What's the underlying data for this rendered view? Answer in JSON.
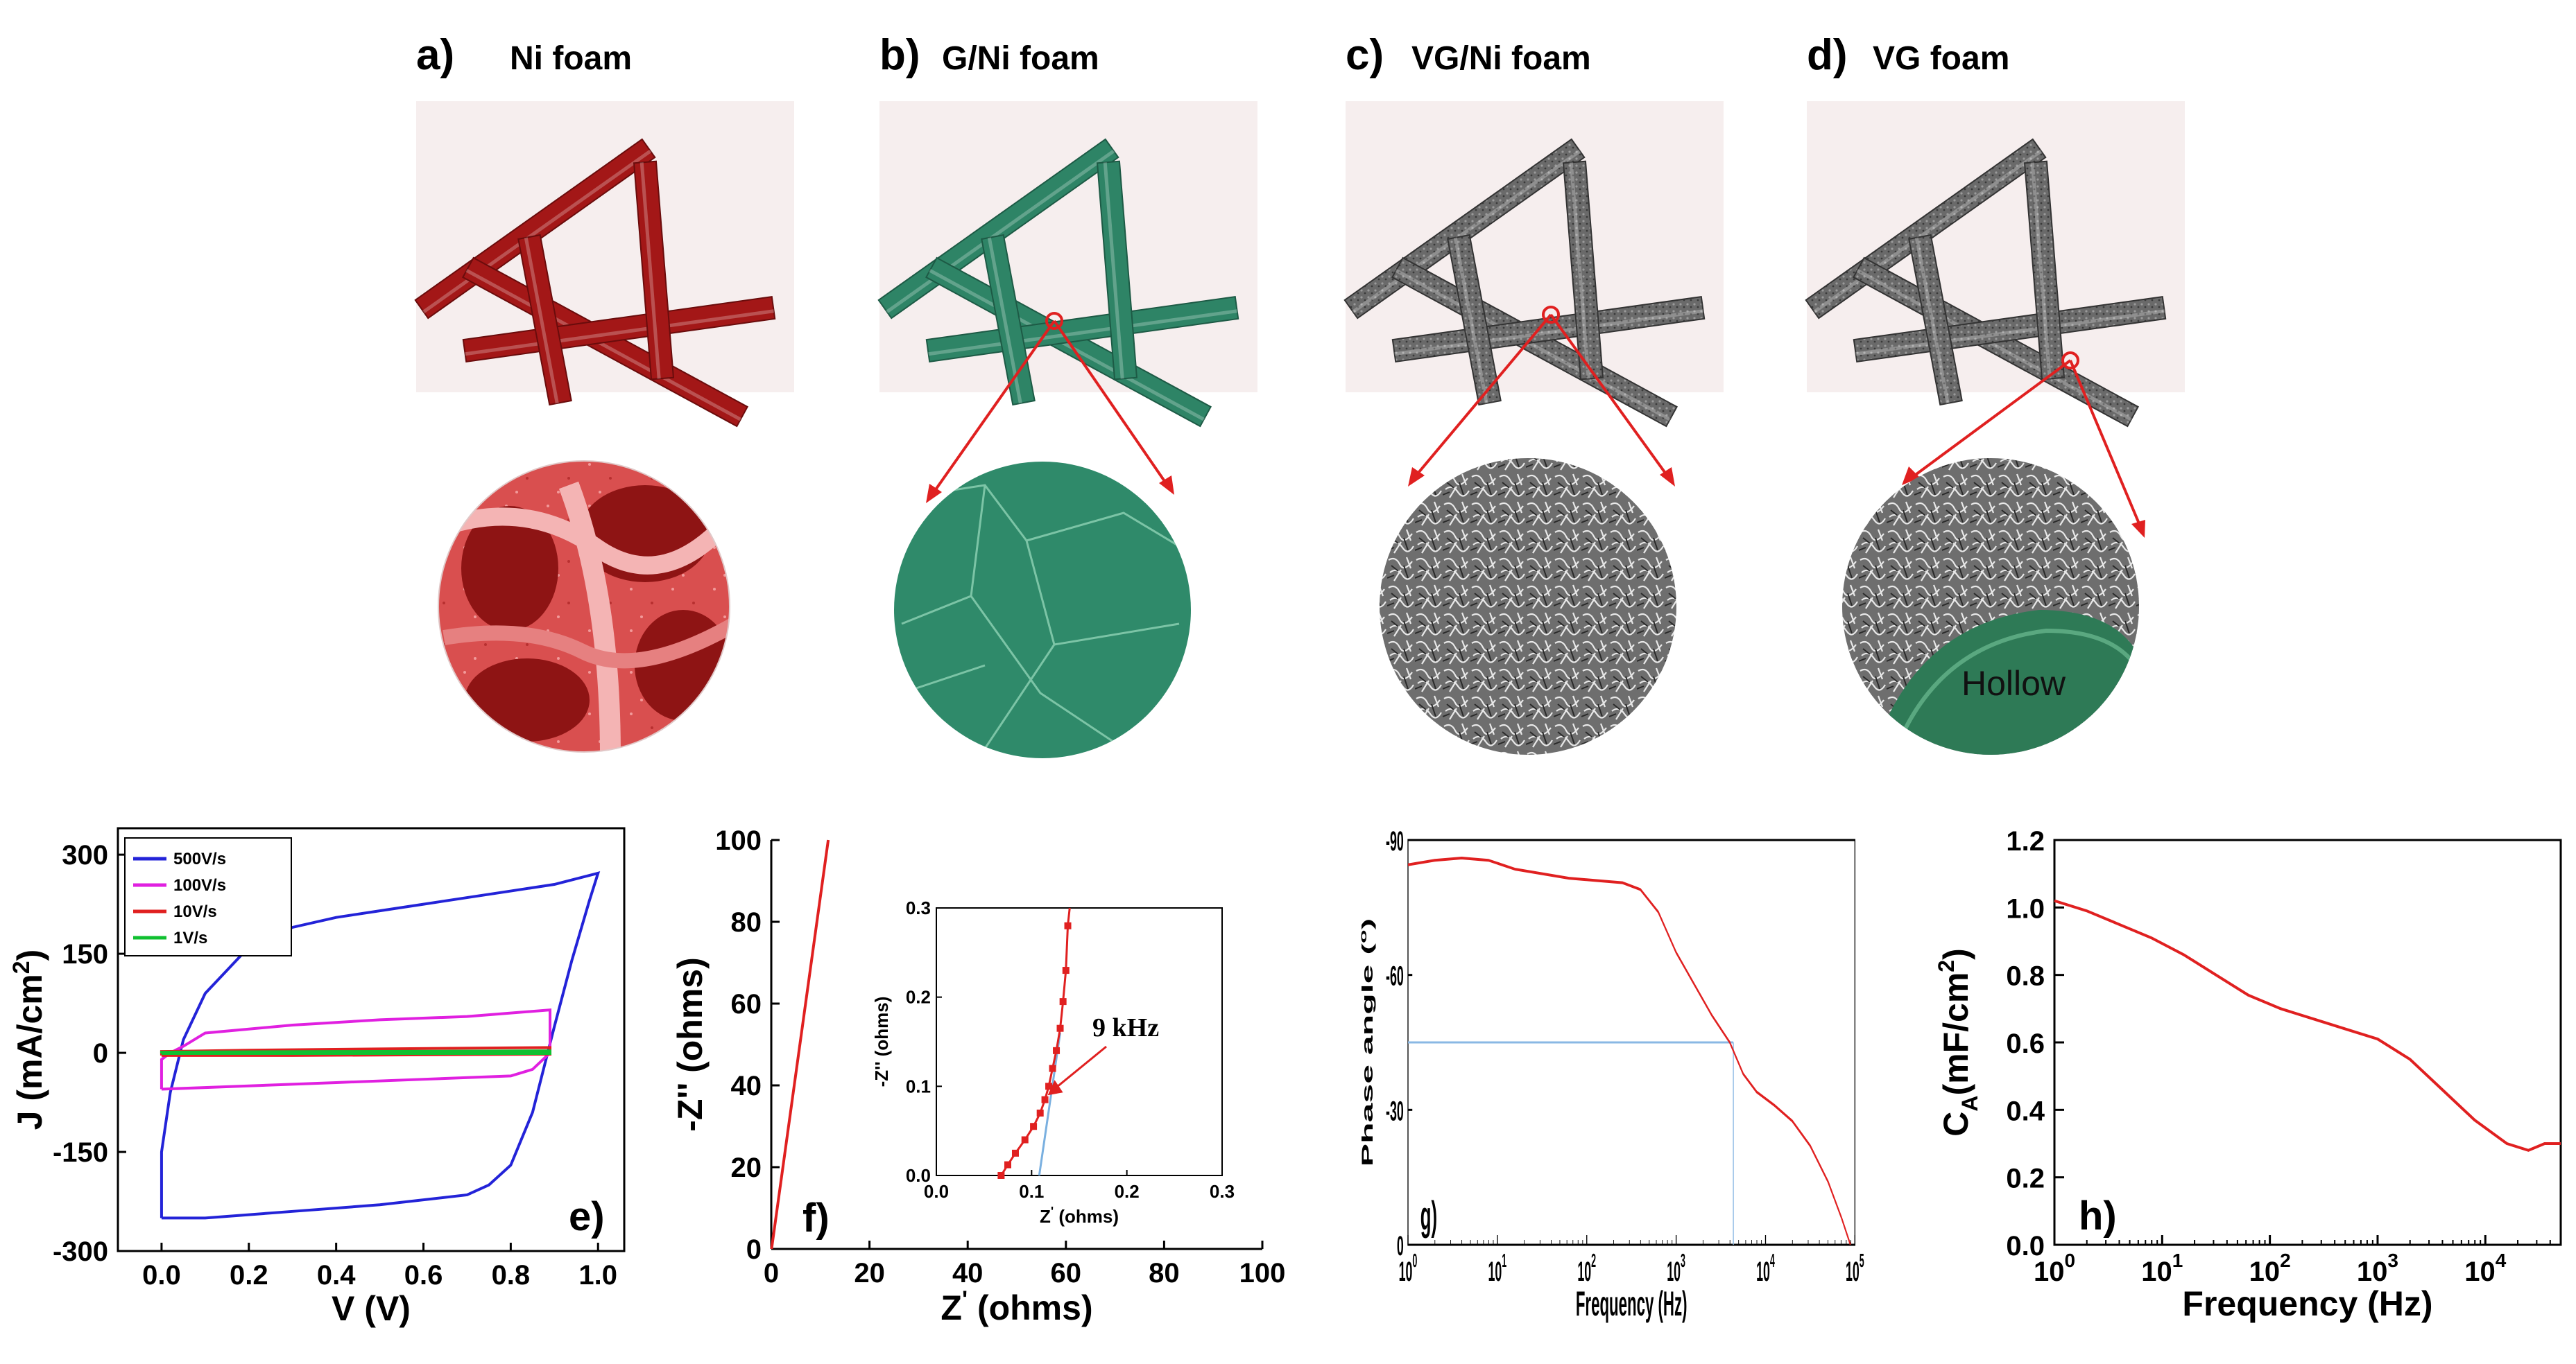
{
  "panels_top": [
    {
      "letter": "a)",
      "title": "Ni foam",
      "color": "#a31717"
    },
    {
      "letter": "b)",
      "title": "G/Ni foam",
      "color": "#2e8466"
    },
    {
      "letter": "c)",
      "title": "VG/Ni foam",
      "color": "#5a5a5a"
    },
    {
      "letter": "d)",
      "title": "VG foam",
      "color": "#5a5a5a"
    }
  ],
  "hollow_label": "Hollow",
  "chart_data": [
    {
      "panel": "e)",
      "type": "line",
      "xlabel": "V (V)",
      "ylabel_main": "J (mA/cm",
      "ylabel_sup": "2",
      "ylabel_end": ")",
      "xlim": [
        -0.1,
        1.06
      ],
      "ylim": [
        -300,
        340
      ],
      "xticks": [
        "0.0",
        "0.2",
        "0.4",
        "0.6",
        "0.8",
        "1.0"
      ],
      "xtick_values": [
        0,
        0.2,
        0.4,
        0.6,
        0.8,
        1.0
      ],
      "yticks": [
        "300",
        "150",
        "0",
        "-150",
        "-300"
      ],
      "ytick_values": [
        300,
        150,
        0,
        -150,
        -300
      ],
      "legend_placement": "top-left",
      "series": [
        {
          "name": "500V/s",
          "color": "#2323d8",
          "points": [
            [
              0,
              -250
            ],
            [
              0,
              -150
            ],
            [
              0.02,
              -60
            ],
            [
              0.05,
              20
            ],
            [
              0.1,
              90
            ],
            [
              0.2,
              160
            ],
            [
              0.3,
              190
            ],
            [
              0.4,
              205
            ],
            [
              0.5,
              215
            ],
            [
              0.6,
              225
            ],
            [
              0.7,
              235
            ],
            [
              0.8,
              245
            ],
            [
              0.9,
              255
            ],
            [
              1.0,
              272
            ],
            [
              0.98,
              230
            ],
            [
              0.94,
              140
            ],
            [
              0.9,
              40
            ],
            [
              0.85,
              -90
            ],
            [
              0.8,
              -170
            ],
            [
              0.75,
              -200
            ],
            [
              0.7,
              -215
            ],
            [
              0.5,
              -230
            ],
            [
              0.3,
              -240
            ],
            [
              0.1,
              -250
            ],
            [
              0,
              -250
            ]
          ]
        },
        {
          "name": "100V/s",
          "color": "#e020e0",
          "points": [
            [
              0,
              -55
            ],
            [
              0,
              -10
            ],
            [
              0.02,
              0
            ],
            [
              0.05,
              10
            ],
            [
              0.1,
              30
            ],
            [
              0.3,
              42
            ],
            [
              0.5,
              50
            ],
            [
              0.7,
              55
            ],
            [
              0.89,
              65
            ],
            [
              0.89,
              0
            ],
            [
              0.85,
              -25
            ],
            [
              0.8,
              -35
            ],
            [
              0.6,
              -40
            ],
            [
              0.4,
              -45
            ],
            [
              0.2,
              -50
            ],
            [
              0,
              -55
            ]
          ]
        },
        {
          "name": "10V/s",
          "color": "#e02020",
          "points": [
            [
              0,
              -4
            ],
            [
              0,
              2
            ],
            [
              0.2,
              4
            ],
            [
              0.5,
              6
            ],
            [
              0.89,
              8
            ],
            [
              0.89,
              -2
            ],
            [
              0.6,
              -3
            ],
            [
              0.3,
              -4
            ],
            [
              0,
              -4
            ]
          ]
        },
        {
          "name": "1V/s",
          "color": "#10c030",
          "points": [
            [
              0,
              -1
            ],
            [
              0,
              1
            ],
            [
              0.4,
              2
            ],
            [
              0.89,
              3
            ],
            [
              0.89,
              -1
            ],
            [
              0.4,
              -1
            ],
            [
              0,
              -1
            ]
          ]
        }
      ]
    },
    {
      "panel": "f)",
      "type": "line",
      "xlabel": "Z",
      "xlabel_sup": "'",
      "xlabel_end": " (ohms)",
      "ylabel": "-Z'' (ohms)",
      "xlim": [
        0,
        100
      ],
      "ylim": [
        0,
        100
      ],
      "xticks": [
        "0",
        "20",
        "40",
        "60",
        "80",
        "100"
      ],
      "xtick_values": [
        0,
        20,
        40,
        60,
        80,
        100
      ],
      "yticks": [
        "0",
        "20",
        "40",
        "60",
        "80",
        "100"
      ],
      "ytick_values": [
        0,
        20,
        40,
        60,
        80,
        100
      ],
      "series": [
        {
          "color": "#e02020",
          "points": [
            [
              0.06,
              0
            ],
            [
              11.6,
              100
            ]
          ]
        }
      ],
      "inset": {
        "xlabel": "Z",
        "xlabel_sup": "'",
        "xlabel_end": " (ohms)",
        "ylabel": "-Z'' (ohms)",
        "xlim": [
          0,
          0.3
        ],
        "ylim": [
          0,
          0.3
        ],
        "xticks": [
          "0.0",
          "0.1",
          "0.2",
          "0.3"
        ],
        "xtick_values": [
          0,
          0.1,
          0.2,
          0.3
        ],
        "yticks": [
          "0.0",
          "0.1",
          "0.2",
          "0.3"
        ],
        "ytick_values": [
          0,
          0.1,
          0.2,
          0.3
        ],
        "annotation": "9 kHz",
        "annotation_point": [
          0.114,
          0.09
        ],
        "points": [
          [
            0.068,
            0.0
          ],
          [
            0.075,
            0.012
          ],
          [
            0.083,
            0.025
          ],
          [
            0.093,
            0.04
          ],
          [
            0.102,
            0.055
          ],
          [
            0.109,
            0.07
          ],
          [
            0.114,
            0.085
          ],
          [
            0.118,
            0.1
          ],
          [
            0.122,
            0.12
          ],
          [
            0.126,
            0.14
          ],
          [
            0.13,
            0.165
          ],
          [
            0.133,
            0.195
          ],
          [
            0.136,
            0.23
          ],
          [
            0.138,
            0.28
          ],
          [
            0.14,
            0.3
          ]
        ],
        "fit_line": [
          [
            0.108,
            0
          ],
          [
            0.13,
            0.16
          ]
        ]
      }
    },
    {
      "panel": "g)",
      "type": "line",
      "xlabel": "Frequency (Hz)",
      "ylabel_main": "Phase angle (",
      "ylabel_sup": "o",
      "ylabel_end": ")",
      "xscale": "log",
      "xlim_exp": [
        0,
        5
      ],
      "ylim": [
        0,
        -90
      ],
      "xticks_exp": [
        "0",
        "1",
        "2",
        "3",
        "4",
        "5"
      ],
      "tick_base": "10",
      "yticks": [
        "-90",
        "-60",
        "-30",
        "0"
      ],
      "ytick_values": [
        -90,
        -60,
        -30,
        0
      ],
      "marker_point": {
        "x_exp": 3.64,
        "y": -45
      },
      "series": [
        {
          "color": "#e02020",
          "points": [
            [
              0,
              -84.5
            ],
            [
              0.3,
              -85.5
            ],
            [
              0.6,
              -86
            ],
            [
              0.9,
              -85.5
            ],
            [
              1.2,
              -83.5
            ],
            [
              1.5,
              -82.5
            ],
            [
              1.8,
              -81.5
            ],
            [
              2.1,
              -81
            ],
            [
              2.4,
              -80.5
            ],
            [
              2.6,
              -79
            ],
            [
              2.8,
              -74
            ],
            [
              3.0,
              -65
            ],
            [
              3.2,
              -58
            ],
            [
              3.4,
              -51
            ],
            [
              3.6,
              -45
            ],
            [
              3.75,
              -38
            ],
            [
              3.9,
              -34
            ],
            [
              4.1,
              -31
            ],
            [
              4.3,
              -27.5
            ],
            [
              4.5,
              -22
            ],
            [
              4.7,
              -14
            ],
            [
              4.85,
              -6
            ],
            [
              4.95,
              0
            ]
          ]
        }
      ]
    },
    {
      "panel": "h)",
      "type": "line",
      "xlabel": "Frequency (Hz)",
      "ylabel_main": "C",
      "ylabel_sub": "A",
      "ylabel_mid": "(mF/cm",
      "ylabel_sup": "2",
      "ylabel_end": ")",
      "xscale": "log",
      "xlim_exp": [
        0,
        4.7
      ],
      "ylim": [
        0,
        1.2
      ],
      "xticks_exp": [
        "0",
        "1",
        "2",
        "3",
        "4"
      ],
      "tick_base": "10",
      "yticks": [
        "0.0",
        "0.2",
        "0.4",
        "0.6",
        "0.8",
        "1.0",
        "1.2"
      ],
      "ytick_values": [
        0,
        0.2,
        0.4,
        0.6,
        0.8,
        1.0,
        1.2
      ],
      "series": [
        {
          "color": "#e02020",
          "points": [
            [
              0,
              1.02
            ],
            [
              0.3,
              0.99
            ],
            [
              0.6,
              0.95
            ],
            [
              0.9,
              0.91
            ],
            [
              1.2,
              0.86
            ],
            [
              1.5,
              0.8
            ],
            [
              1.8,
              0.74
            ],
            [
              2.1,
              0.7
            ],
            [
              2.4,
              0.67
            ],
            [
              2.7,
              0.64
            ],
            [
              3.0,
              0.61
            ],
            [
              3.3,
              0.55
            ],
            [
              3.6,
              0.46
            ],
            [
              3.9,
              0.37
            ],
            [
              4.2,
              0.3
            ],
            [
              4.4,
              0.28
            ],
            [
              4.55,
              0.3
            ],
            [
              4.7,
              0.3
            ]
          ]
        }
      ]
    }
  ]
}
